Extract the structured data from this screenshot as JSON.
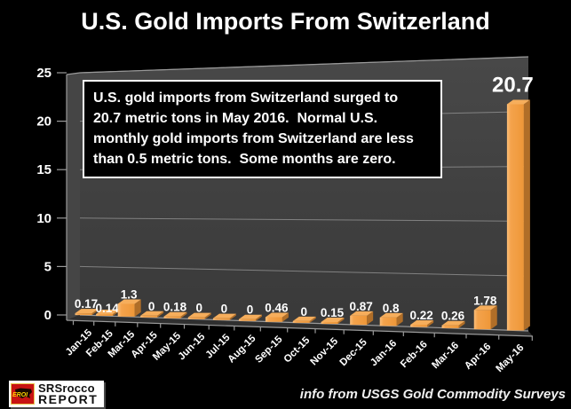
{
  "title": "U.S. Gold Imports From Switzerland",
  "annotation": {
    "lines": [
      "U.S. gold imports from Switzerland surged to",
      "20.7 metric tons in May 2016.  Normal U.S.",
      "monthly gold imports from Switzerland are less",
      "than 0.5 metric tons.  Some months are zero."
    ]
  },
  "footer": {
    "source_note": "info from USGS Gold Commodity Surveys"
  },
  "logo": {
    "badge_text": "EROI",
    "line1": "SRSrocco",
    "line2": "REPORT"
  },
  "chart_data": {
    "type": "bar",
    "style": "3d-column",
    "title": "U.S. Gold Imports From Switzerland",
    "unit": "metric tons",
    "categories": [
      "Jan-15",
      "Feb-15",
      "Mar-15",
      "Apr-15",
      "May-15",
      "Jun-15",
      "Jul-15",
      "Aug-15",
      "Sep-15",
      "Oct-15",
      "Nov-15",
      "Dec-15",
      "Jan-16",
      "Feb-16",
      "Mar-16",
      "Apr-16",
      "May-16"
    ],
    "values": [
      0.17,
      0.14,
      1.3,
      0,
      0.18,
      0,
      0,
      0,
      0.46,
      0,
      0.15,
      0.87,
      0.8,
      0.22,
      0.26,
      1.78,
      20.7
    ],
    "value_labels": [
      "0.17",
      "0.14",
      "1.3",
      "0",
      "0.18",
      "0",
      "0",
      "0",
      "0.46",
      "0",
      "0.15",
      "0.87",
      "0.8",
      "0.22",
      "0.26",
      "1.78",
      "20.7"
    ],
    "xlabel": "",
    "ylabel": "",
    "ylim": [
      0,
      25
    ],
    "yticks": [
      0,
      5,
      10,
      15,
      20,
      25
    ],
    "grid": true,
    "legend": "none",
    "colors": {
      "background": "#000000",
      "wall": "#3f3f3f",
      "side_wall": "#454545",
      "floor": "#2f2f2f",
      "gridline": "#8d8d8d",
      "axis_line": "#9a9a9a",
      "bar_front": "#ee9738",
      "bar_highlight": "#fbbe79",
      "bar_side": "#b06e28",
      "bar_top": "#f6ae5c",
      "text": "#ffffff"
    }
  }
}
